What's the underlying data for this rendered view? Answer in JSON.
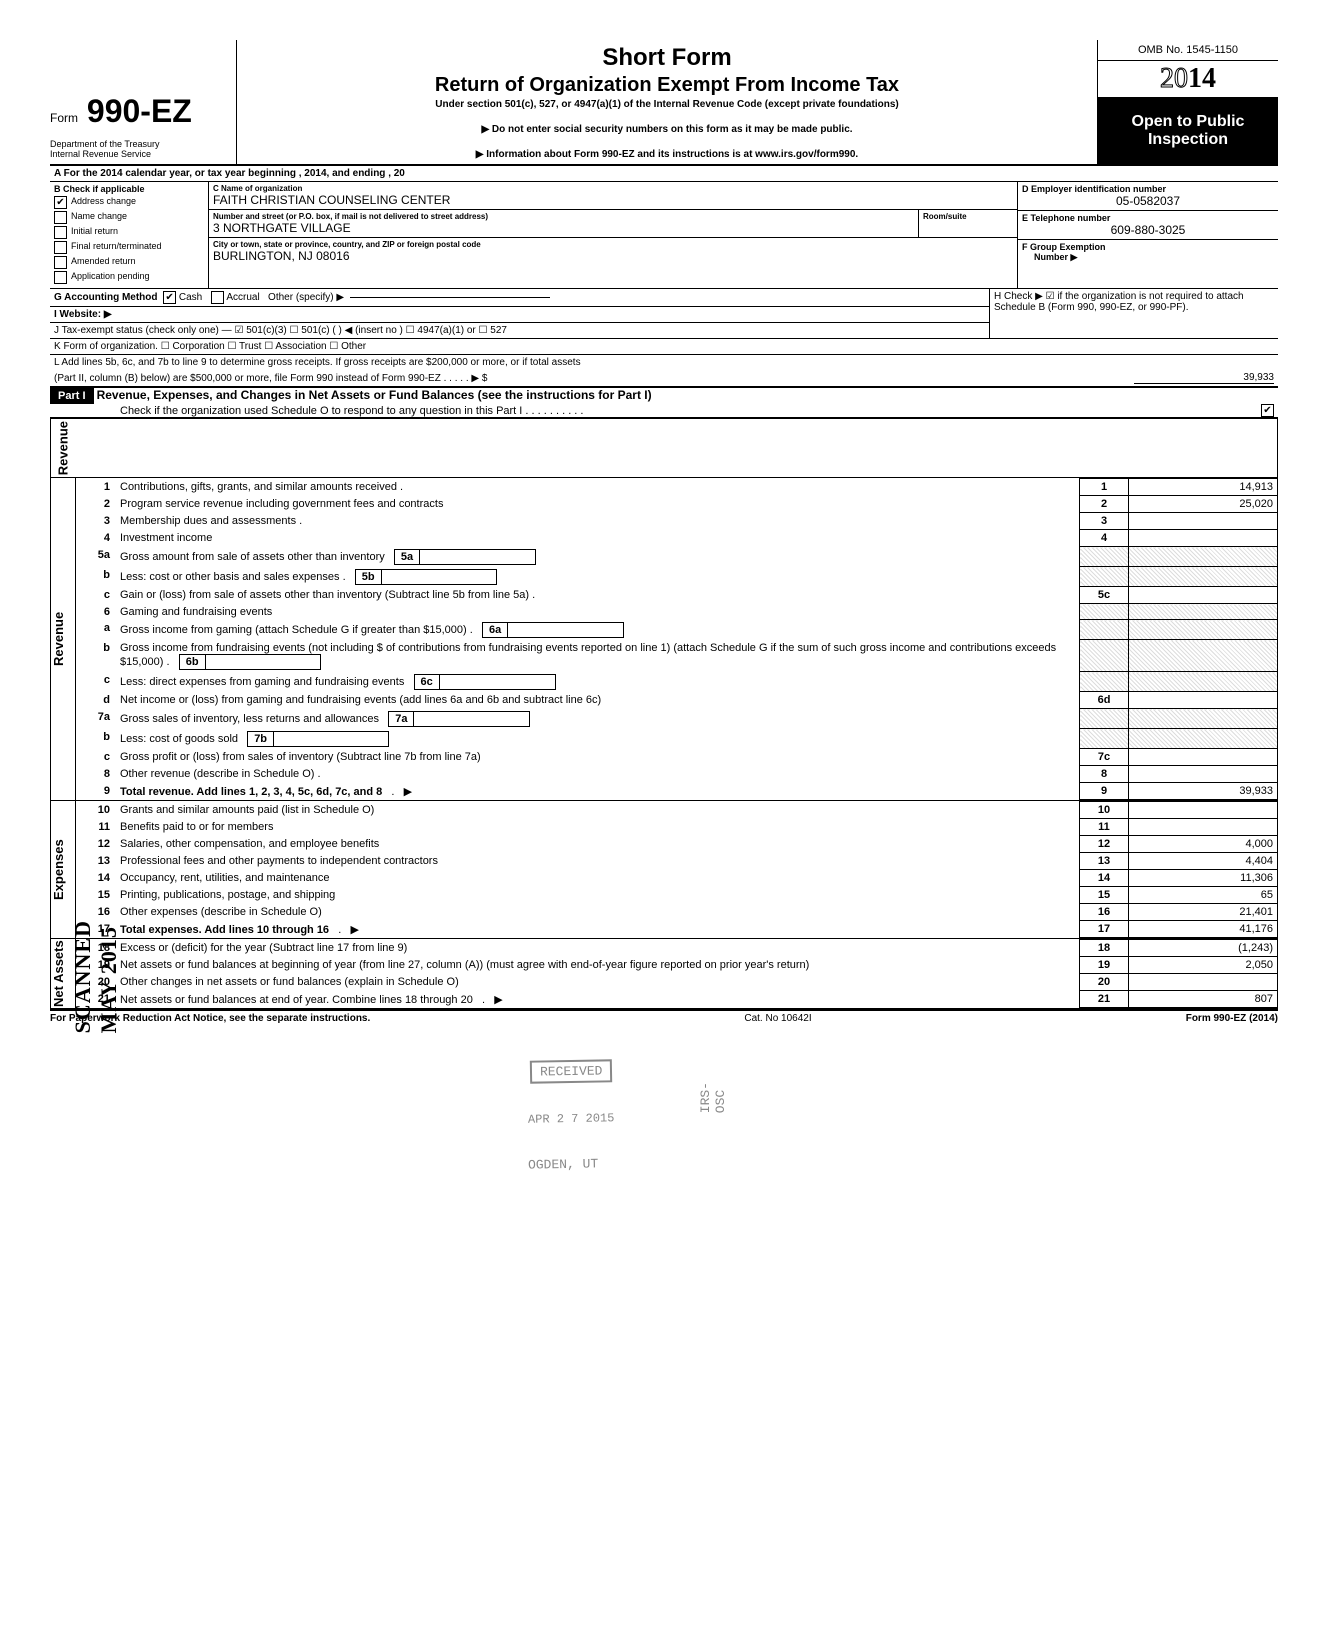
{
  "header": {
    "form_prefix": "Form",
    "form_number": "990-EZ",
    "title1": "Short Form",
    "title2": "Return of Organization Exempt From Income Tax",
    "under": "Under section 501(c), 527, or 4947(a)(1) of the Internal Revenue Code (except private foundations)",
    "warn": "▶ Do not enter social security numbers on this form as it may be made public.",
    "info": "▶ Information about Form 990-EZ and its instructions is at www.irs.gov/form990.",
    "dept1": "Department of the Treasury",
    "dept2": "Internal Revenue Service",
    "omb": "OMB No. 1545-1150",
    "year_prefix": "20",
    "year_suffix": "14",
    "open1": "Open to Public",
    "open2": "Inspection"
  },
  "lineA": "A  For the 2014 calendar year, or tax year beginning                                                                              , 2014, and ending                                                      , 20",
  "colB": {
    "head": "B  Check if applicable",
    "items": [
      "Address change",
      "Name change",
      "Initial return",
      "Final return/terminated",
      "Amended return",
      "Application pending"
    ],
    "checked_address": "✔"
  },
  "colC": {
    "name_label": "C  Name of organization",
    "name": "FAITH CHRISTIAN COUNSELING CENTER",
    "street_label": "Number and street (or P.O. box, if mail is not delivered to street address)",
    "room_label": "Room/suite",
    "street": "3 NORTHGATE VILLAGE",
    "city_label": "City or town, state or province, country, and ZIP or foreign postal code",
    "city": "BURLINGTON, NJ 08016"
  },
  "colD": {
    "label": "D Employer identification number",
    "val": "05-0582037",
    "e_label": "E  Telephone number",
    "e_val": "609-880-3025",
    "f_label": "F  Group Exemption",
    "f_label2": "Number ▶"
  },
  "lineG": {
    "label": "G  Accounting Method",
    "cash": "Cash",
    "accrual": "Accrual",
    "other": "Other (specify) ▶",
    "cash_chk": "✔"
  },
  "lineH": "H  Check ▶ ☑ if the organization is not required to attach Schedule B (Form 990, 990-EZ, or 990-PF).",
  "lineI": "I   Website: ▶",
  "lineJ": "J  Tax-exempt status (check only one) —  ☑ 501(c)(3)   ☐ 501(c) (       ) ◀ (insert no ) ☐ 4947(a)(1) or   ☐ 527",
  "lineK": "K  Form of organization.   ☐ Corporation      ☐ Trust              ☐ Association       ☐ Other",
  "lineL1": "L  Add lines 5b, 6c, and 7b to line 9 to determine gross receipts. If gross receipts are $200,000 or more, or if total assets",
  "lineL2": "(Part II, column (B) below) are $500,000 or more, file Form 990 instead of Form 990-EZ   .        .        .         .        .     ▶   $",
  "lineL_val": "39,933",
  "part1": {
    "label": "Part I",
    "title": "Revenue, Expenses, and Changes in Net Assets or Fund Balances (see the instructions for Part I)",
    "sub": "Check if the organization used Schedule O to respond to any question in this Part I .   .   .   .   .   .   .   .   .   .",
    "sub_chk": "✔"
  },
  "sidebars": {
    "rev": "Revenue",
    "exp": "Expenses",
    "net": "Net Assets"
  },
  "rows": [
    {
      "n": "1",
      "d": "Contributions, gifts, grants, and similar amounts received .",
      "r": "1",
      "v": "14,913"
    },
    {
      "n": "2",
      "d": "Program service revenue including government fees and contracts",
      "r": "2",
      "v": "25,020"
    },
    {
      "n": "3",
      "d": "Membership dues and assessments .",
      "r": "3",
      "v": ""
    },
    {
      "n": "4",
      "d": "Investment income",
      "r": "4",
      "v": ""
    },
    {
      "n": "5a",
      "d": "Gross amount from sale of assets other than inventory",
      "ib": "5a",
      "shade": true
    },
    {
      "n": "b",
      "d": "Less: cost or other basis and sales expenses .",
      "ib": "5b",
      "shade": true
    },
    {
      "n": "c",
      "d": "Gain or (loss) from sale of assets other than inventory (Subtract line 5b from line 5a) .",
      "r": "5c",
      "v": ""
    },
    {
      "n": "6",
      "d": "Gaming and fundraising events",
      "shade": true
    },
    {
      "n": "a",
      "d": "Gross income from gaming (attach Schedule G if greater than $15,000) .",
      "ib": "6a",
      "shade": true,
      "multi": true
    },
    {
      "n": "b",
      "d": "Gross income from fundraising events (not including  $                         of contributions from fundraising events reported on line 1) (attach Schedule G if the sum of such gross income and contributions exceeds $15,000) .",
      "ib": "6b",
      "shade": true,
      "multi": true
    },
    {
      "n": "c",
      "d": "Less: direct expenses from gaming and fundraising events",
      "ib": "6c",
      "shade": true
    },
    {
      "n": "d",
      "d": "Net income or (loss) from gaming and fundraising events (add lines 6a and 6b and subtract line 6c)",
      "r": "6d",
      "v": "",
      "multi": true,
      "shadeL": true
    },
    {
      "n": "7a",
      "d": "Gross sales of inventory, less returns and allowances",
      "ib": "7a",
      "shade": true
    },
    {
      "n": "b",
      "d": "Less: cost of goods sold",
      "ib": "7b",
      "shade": true
    },
    {
      "n": "c",
      "d": "Gross profit or (loss) from sales of inventory (Subtract line 7b from line 7a)",
      "r": "7c",
      "v": ""
    },
    {
      "n": "8",
      "d": "Other revenue (describe in Schedule O) .",
      "r": "8",
      "v": ""
    },
    {
      "n": "9",
      "d": "Total revenue. Add lines 1, 2, 3, 4, 5c, 6d, 7c, and 8",
      "r": "9",
      "v": "39,933",
      "bold": true,
      "arrow": true
    }
  ],
  "exp_rows": [
    {
      "n": "10",
      "d": "Grants and similar amounts paid (list in Schedule O)",
      "r": "10",
      "v": ""
    },
    {
      "n": "11",
      "d": "Benefits paid to or for members",
      "r": "11",
      "v": ""
    },
    {
      "n": "12",
      "d": "Salaries, other compensation, and employee benefits",
      "r": "12",
      "v": "4,000"
    },
    {
      "n": "13",
      "d": "Professional fees and other payments to independent contractors",
      "r": "13",
      "v": "4,404"
    },
    {
      "n": "14",
      "d": "Occupancy, rent, utilities, and maintenance",
      "r": "14",
      "v": "11,306"
    },
    {
      "n": "15",
      "d": "Printing, publications, postage, and shipping",
      "r": "15",
      "v": "65"
    },
    {
      "n": "16",
      "d": "Other expenses (describe in Schedule O)",
      "r": "16",
      "v": "21,401"
    },
    {
      "n": "17",
      "d": "Total expenses. Add lines 10 through 16",
      "r": "17",
      "v": "41,176",
      "bold": true,
      "arrow": true
    }
  ],
  "net_rows": [
    {
      "n": "18",
      "d": "Excess or (deficit) for the year (Subtract line 17 from line 9)",
      "r": "18",
      "v": "(1,243)"
    },
    {
      "n": "19",
      "d": "Net assets or fund balances at beginning of year (from line 27, column (A)) (must agree with end-of-year figure reported on prior year's return)",
      "r": "19",
      "v": "2,050",
      "multi": true
    },
    {
      "n": "20",
      "d": "Other changes in net assets or fund balances (explain in Schedule O)",
      "r": "20",
      "v": ""
    },
    {
      "n": "21",
      "d": "Net assets or fund balances at end of year. Combine lines 18 through 20",
      "r": "21",
      "v": "807",
      "arrow": true
    }
  ],
  "footer": {
    "left": "For Paperwork Reduction Act Notice, see the separate instructions.",
    "mid": "Cat. No 10642I",
    "right": "Form 990-EZ  (2014)"
  },
  "stamps": {
    "received": "RECEIVED",
    "date": "APR 2 7 2015",
    "ogden": "OGDEN, UT",
    "irs": "IRS-OSC",
    "scanned": "SCANNED MAY 2015"
  }
}
